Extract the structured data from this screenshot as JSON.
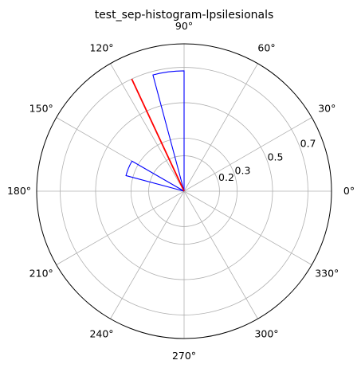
{
  "chart_data": {
    "type": "polar-histogram",
    "title": "test_sep-histogram-lpsilesionals",
    "angular_ticks": [
      "0°",
      "30°",
      "60°",
      "90°",
      "120°",
      "150°",
      "180°",
      "210°",
      "240°",
      "270°",
      "300°",
      "330°"
    ],
    "angular_tick_degrees": [
      0,
      30,
      60,
      90,
      120,
      150,
      180,
      210,
      240,
      270,
      300,
      330
    ],
    "radial_ticks": [
      0.2,
      0.3,
      0.5,
      0.7
    ],
    "radial_tick_labels": [
      "0.2",
      "0.3",
      "0.5",
      "0.7"
    ],
    "rlim": [
      0,
      0.833
    ],
    "grid": true,
    "bins": [
      {
        "theta_start_deg": 90,
        "theta_end_deg": 105,
        "radius": 0.68
      },
      {
        "theta_start_deg": 150,
        "theta_end_deg": 165,
        "radius": 0.34
      }
    ],
    "mean_direction": {
      "theta_deg": 115,
      "radius": 0.7
    },
    "colors": {
      "bins": "#0000ff",
      "mean_line": "#ff0000",
      "grid": "#b0b0b0",
      "axis": "#000000"
    }
  }
}
